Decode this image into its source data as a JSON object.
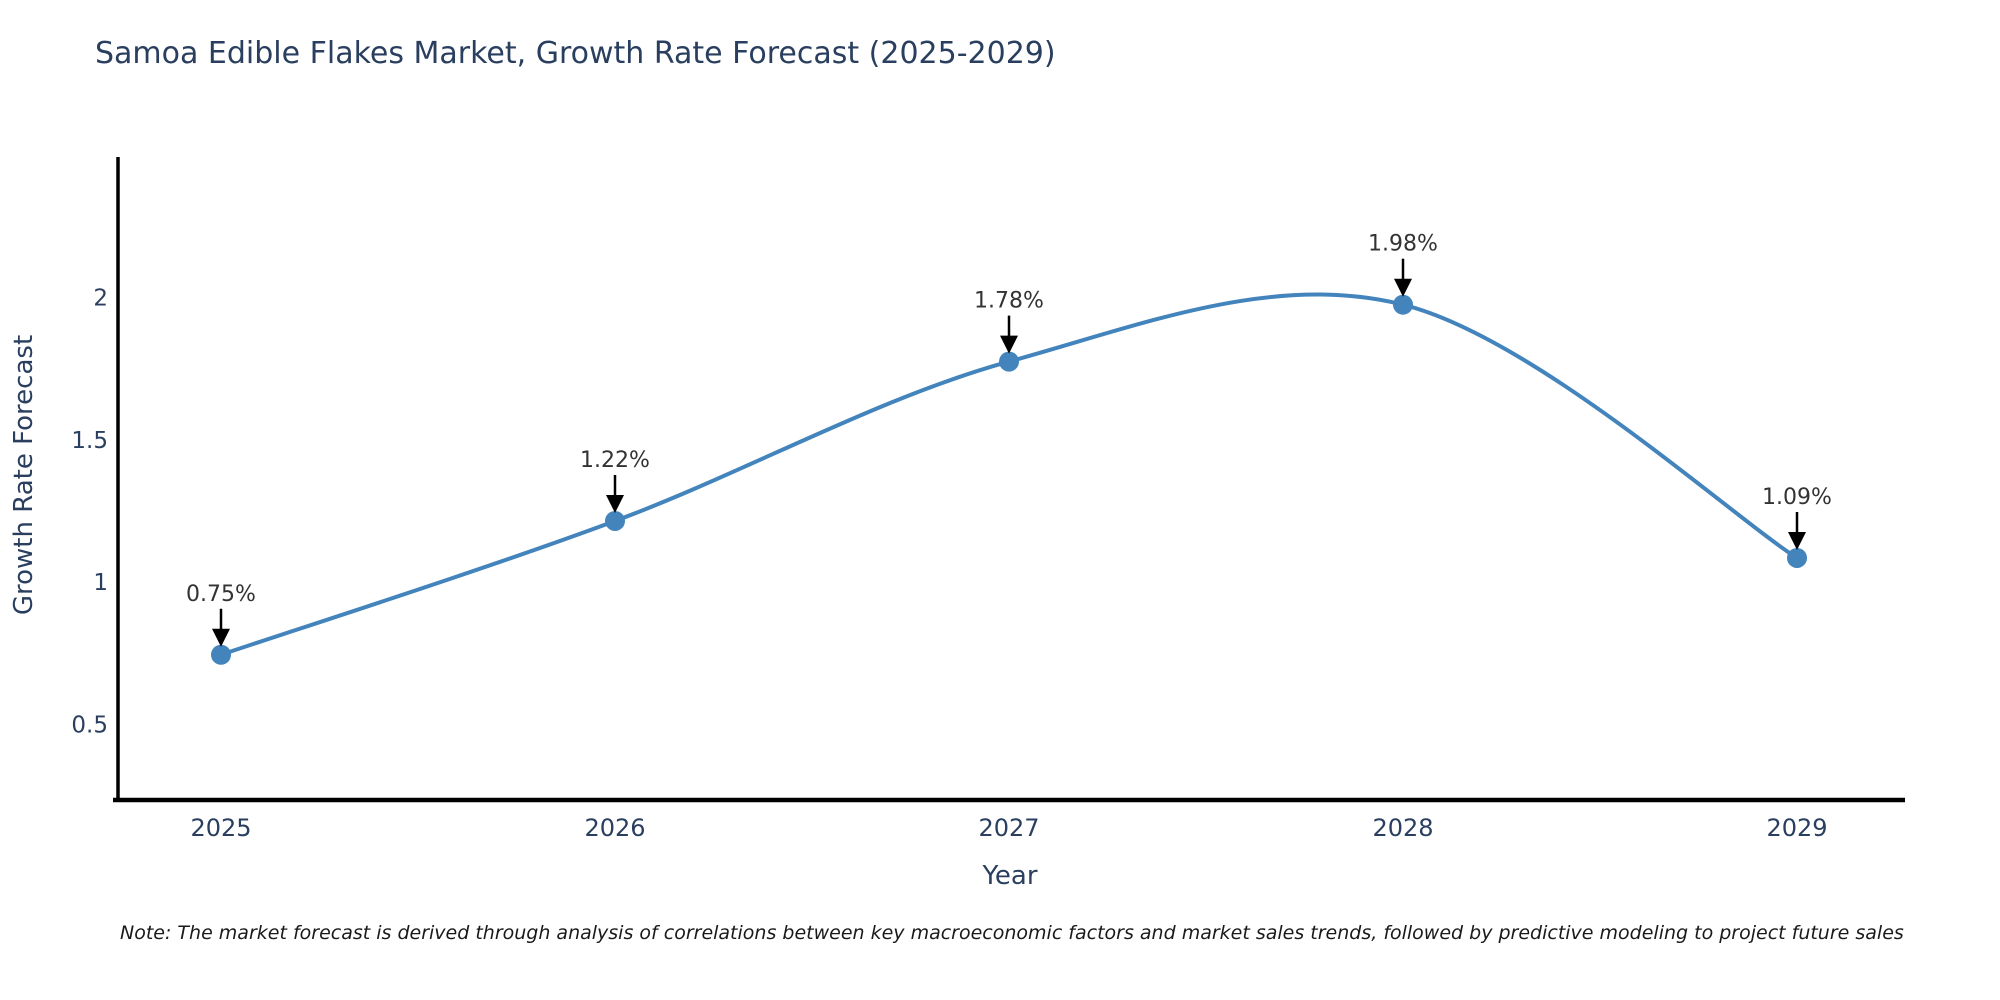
{
  "title": "Samoa Edible Flakes Market, Growth Rate Forecast (2025-2029)",
  "note": "Note: The market forecast is derived through analysis of correlations between key macroeconomic factors and market sales trends, followed by predictive modeling to project future sales",
  "chart_data": {
    "type": "line",
    "title": "Samoa Edible Flakes Market, Growth Rate Forecast (2025-2029)",
    "categories": [
      "2025",
      "2026",
      "2027",
      "2028",
      "2029"
    ],
    "series": [
      {
        "name": "Growth Rate Forecast",
        "values": [
          0.75,
          1.22,
          1.78,
          1.98,
          1.09
        ]
      }
    ],
    "annotations": [
      "0.75%",
      "1.22%",
      "1.78%",
      "1.98%",
      "1.09%"
    ],
    "xlabel": "Year",
    "ylabel": "Growth Rate Forecast",
    "y_ticks": [
      0.5,
      1,
      1.5,
      2
    ],
    "ylim": [
      0.24,
      2.51
    ],
    "grid": false,
    "legend": "none",
    "line_shape": "spline",
    "colors": {
      "line": "#4384bc",
      "marker": "#4384bc",
      "axis": "#000000",
      "text": "#2a3f5f",
      "annotation_text": "#333333",
      "arrow": "#000000"
    }
  }
}
